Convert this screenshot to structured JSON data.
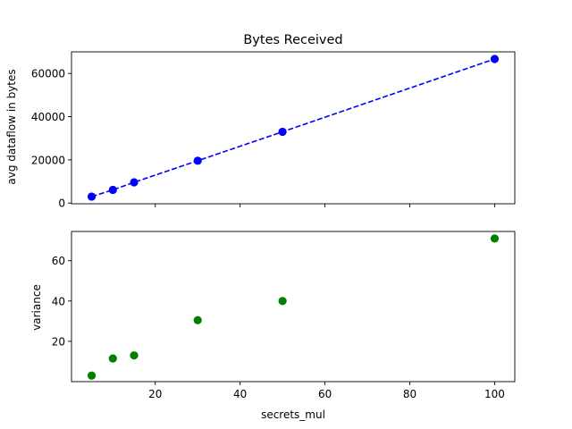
{
  "chart_data": [
    {
      "type": "line",
      "title": "Bytes Received",
      "xlabel": "",
      "ylabel": "avg dataflow in bytes",
      "xlim": [
        0.25,
        104.75
      ],
      "ylim": [
        -330,
        70000
      ],
      "xticks": [
        20,
        40,
        60,
        80,
        100
      ],
      "show_xtick_labels": false,
      "yticks": [
        0,
        20000,
        40000,
        60000
      ],
      "ytick_labels": [
        "0",
        "20000",
        "40000",
        "60000"
      ],
      "line_style": "dashed",
      "marker": "circle",
      "color": "#0000ff",
      "grid": false,
      "series": [
        {
          "x": [
            5,
            10,
            15,
            30,
            50,
            100
          ],
          "y": [
            3000,
            6100,
            9600,
            19600,
            33000,
            66700
          ]
        }
      ]
    },
    {
      "type": "scatter",
      "title": "",
      "xlabel": "secrets_mul",
      "ylabel": "variance",
      "xlim": [
        0.25,
        104.75
      ],
      "ylim": [
        0,
        74.5
      ],
      "xticks": [
        20,
        40,
        60,
        80,
        100
      ],
      "xtick_labels": [
        "20",
        "40",
        "60",
        "80",
        "100"
      ],
      "yticks": [
        20,
        40,
        60
      ],
      "ytick_labels": [
        "20",
        "40",
        "60"
      ],
      "marker": "circle",
      "color": "#008000",
      "grid": false,
      "series": [
        {
          "x": [
            5,
            10,
            15,
            30,
            50,
            100
          ],
          "y": [
            3,
            11.5,
            13,
            30.5,
            40,
            71
          ]
        }
      ]
    }
  ]
}
